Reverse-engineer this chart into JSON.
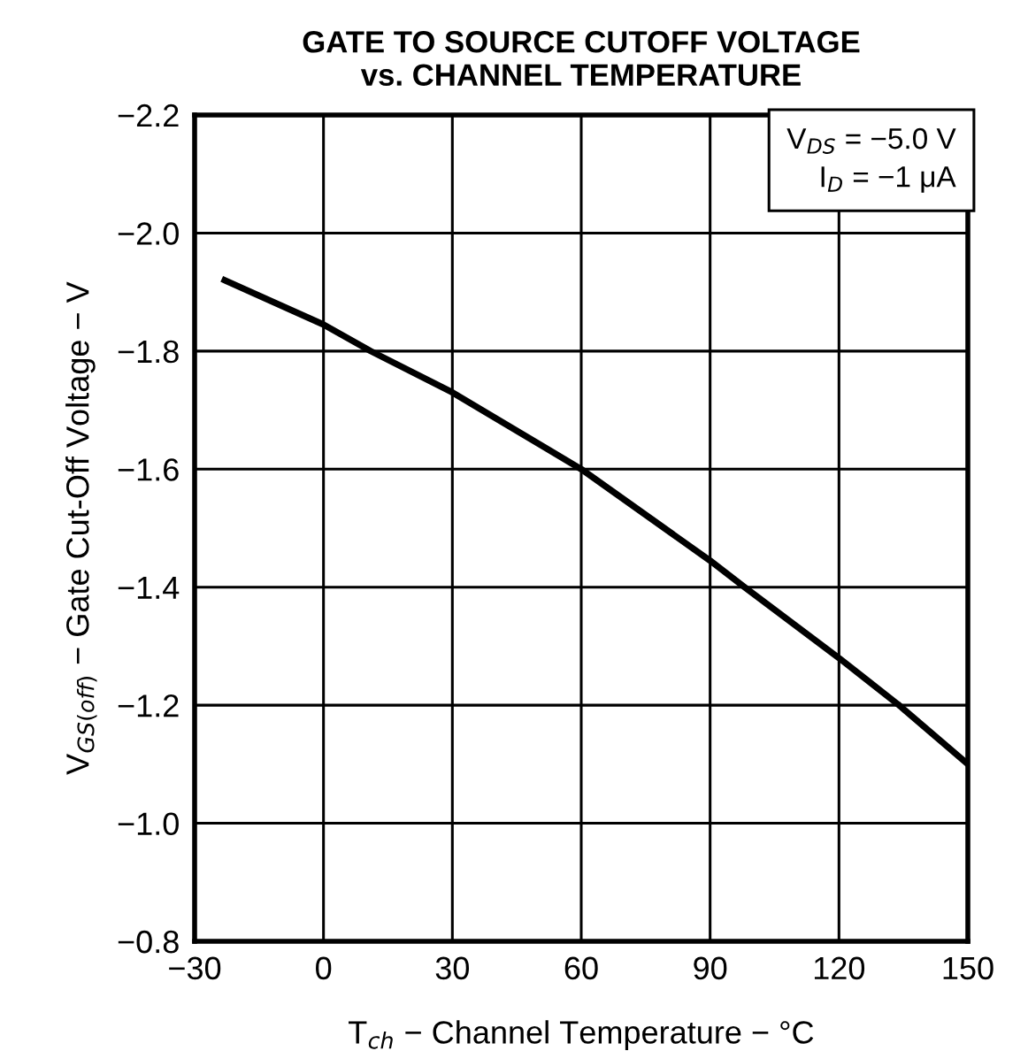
{
  "chart_data": {
    "type": "line",
    "title": "GATE TO SOURCE CUTOFF VOLTAGE\nvs. CHANNEL TEMPERATURE",
    "xlabel": "T$_{ch}$ − Channel Temperature − °C",
    "ylabel": "V$_{GS(off)}$ − Gate Cut-Off Voltage − V",
    "annotations": [
      "V$_{DS}$ = −5.0 V",
      "I$_{D}$ = −1 μA"
    ],
    "series": [
      {
        "color": "#000000",
        "x": [
          -23,
          0,
          11,
          30,
          60,
          90,
          98,
          120,
          134,
          150
        ],
        "values": [
          -1.92,
          -1.845,
          -1.8,
          -1.73,
          -1.6,
          -1.445,
          -1.4,
          -1.28,
          -1.2,
          -1.1
        ]
      }
    ],
    "xlim": [
      -30,
      150
    ],
    "xticks": [
      {
        "value": -30,
        "label": "−30"
      },
      0,
      30,
      60,
      90,
      120,
      150
    ],
    "ylim": [
      -0.8,
      -2.2
    ],
    "yticks": [
      {
        "value": -0.8,
        "label": "−0.8"
      },
      {
        "value": -1.0,
        "label": "−1.0"
      },
      {
        "value": -1.2,
        "label": "−1.2"
      },
      {
        "value": -1.4,
        "label": "−1.4"
      },
      {
        "value": -1.6,
        "label": "−1.6"
      },
      {
        "value": -1.8,
        "label": "−1.8"
      },
      {
        "value": -2.0,
        "label": "−2.0"
      },
      {
        "value": -2.2,
        "label": "−2.2"
      }
    ],
    "grid": true,
    "line_style": "solid",
    "marker": "none"
  }
}
